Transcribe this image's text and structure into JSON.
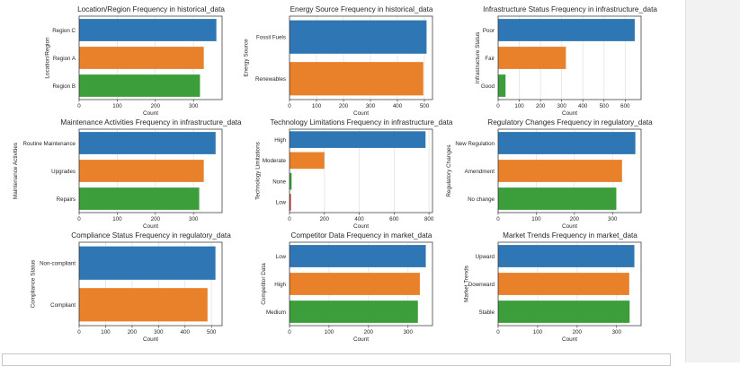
{
  "chart_data": [
    {
      "type": "bar",
      "orientation": "horizontal",
      "title": "Location/Region Frequency in historical_data",
      "xlabel": "Count",
      "ylabel": "Location/Region",
      "categories": [
        "Region C",
        "Region A",
        "Region B"
      ],
      "values": [
        360,
        327,
        317
      ],
      "colors": [
        "#2f77b4",
        "#e8812a",
        "#3b9e3b"
      ],
      "xlim": [
        0,
        375
      ],
      "xticks": [
        0,
        100,
        200,
        300
      ]
    },
    {
      "type": "bar",
      "orientation": "horizontal",
      "title": "Energy Source Frequency in historical_data",
      "xlabel": "Count",
      "ylabel": "Energy Source",
      "categories": [
        "Fossil Fuels",
        "Renewables"
      ],
      "values": [
        508,
        496
      ],
      "colors": [
        "#2f77b4",
        "#e8812a"
      ],
      "xlim": [
        0,
        530
      ],
      "xticks": [
        0,
        100,
        200,
        300,
        400,
        500
      ]
    },
    {
      "type": "bar",
      "orientation": "horizontal",
      "title": "Infrastructure Status Frequency in infrastructure_data",
      "xlabel": "Count",
      "ylabel": "Infrastructure Status",
      "categories": [
        "Poor",
        "Fair",
        "Good"
      ],
      "values": [
        645,
        320,
        35
      ],
      "colors": [
        "#2f77b4",
        "#e8812a",
        "#3b9e3b"
      ],
      "xlim": [
        0,
        675
      ],
      "xticks": [
        0,
        100,
        200,
        300,
        400,
        500,
        600
      ]
    },
    {
      "type": "bar",
      "orientation": "horizontal",
      "title": "Maintenance Activities Frequency in infrastructure_data",
      "xlabel": "Count",
      "ylabel": "Maintenance Activities",
      "categories": [
        "Routine Maintenance",
        "Upgrades",
        "Repairs"
      ],
      "values": [
        358,
        327,
        315
      ],
      "colors": [
        "#2f77b4",
        "#e8812a",
        "#3b9e3b"
      ],
      "xlim": [
        0,
        375
      ],
      "xticks": [
        0,
        100,
        200,
        300
      ]
    },
    {
      "type": "bar",
      "orientation": "horizontal",
      "title": "Technology Limitations Frequency in infrastructure_data",
      "xlabel": "Count",
      "ylabel": "Technology Limitations",
      "categories": [
        "High",
        "Moderate",
        "None",
        "Low"
      ],
      "values": [
        780,
        200,
        12,
        8
      ],
      "colors": [
        "#2f77b4",
        "#e8812a",
        "#3b9e3b",
        "#c9372c"
      ],
      "xlim": [
        0,
        820
      ],
      "xticks": [
        0,
        200,
        400,
        600,
        800
      ]
    },
    {
      "type": "bar",
      "orientation": "horizontal",
      "title": "Regulatory Changes Frequency in regulatory_data",
      "xlabel": "Count",
      "ylabel": "Regulatory Changes",
      "categories": [
        "New Regulation",
        "Amendment",
        "No change"
      ],
      "values": [
        360,
        325,
        310
      ],
      "colors": [
        "#2f77b4",
        "#e8812a",
        "#3b9e3b"
      ],
      "xlim": [
        0,
        375
      ],
      "xticks": [
        0,
        100,
        200,
        300
      ]
    },
    {
      "type": "bar",
      "orientation": "horizontal",
      "title": "Compliance Status Frequency in regulatory_data",
      "xlabel": "Count",
      "ylabel": "Compliance Status",
      "categories": [
        "Non-compliant",
        "Compliant"
      ],
      "values": [
        515,
        485
      ],
      "colors": [
        "#2f77b4",
        "#e8812a"
      ],
      "xlim": [
        0,
        540
      ],
      "xticks": [
        0,
        100,
        200,
        300,
        400,
        500
      ]
    },
    {
      "type": "bar",
      "orientation": "horizontal",
      "title": "Competitor Data Frequency in market_data",
      "xlabel": "Count",
      "ylabel": "Competitor Data",
      "categories": [
        "Low",
        "High",
        "Medium"
      ],
      "values": [
        345,
        330,
        325
      ],
      "colors": [
        "#2f77b4",
        "#e8812a",
        "#3b9e3b"
      ],
      "xlim": [
        0,
        362
      ],
      "xticks": [
        0,
        100,
        200,
        300
      ]
    },
    {
      "type": "bar",
      "orientation": "horizontal",
      "title": "Market Trends Frequency in market_data",
      "xlabel": "Count",
      "ylabel": "Market Trends",
      "categories": [
        "Upward",
        "Downward",
        "Stable"
      ],
      "values": [
        345,
        332,
        333
      ],
      "colors": [
        "#2f77b4",
        "#e8812a",
        "#3b9e3b"
      ],
      "xlim": [
        0,
        362
      ],
      "xticks": [
        0,
        100,
        200,
        300
      ]
    }
  ]
}
